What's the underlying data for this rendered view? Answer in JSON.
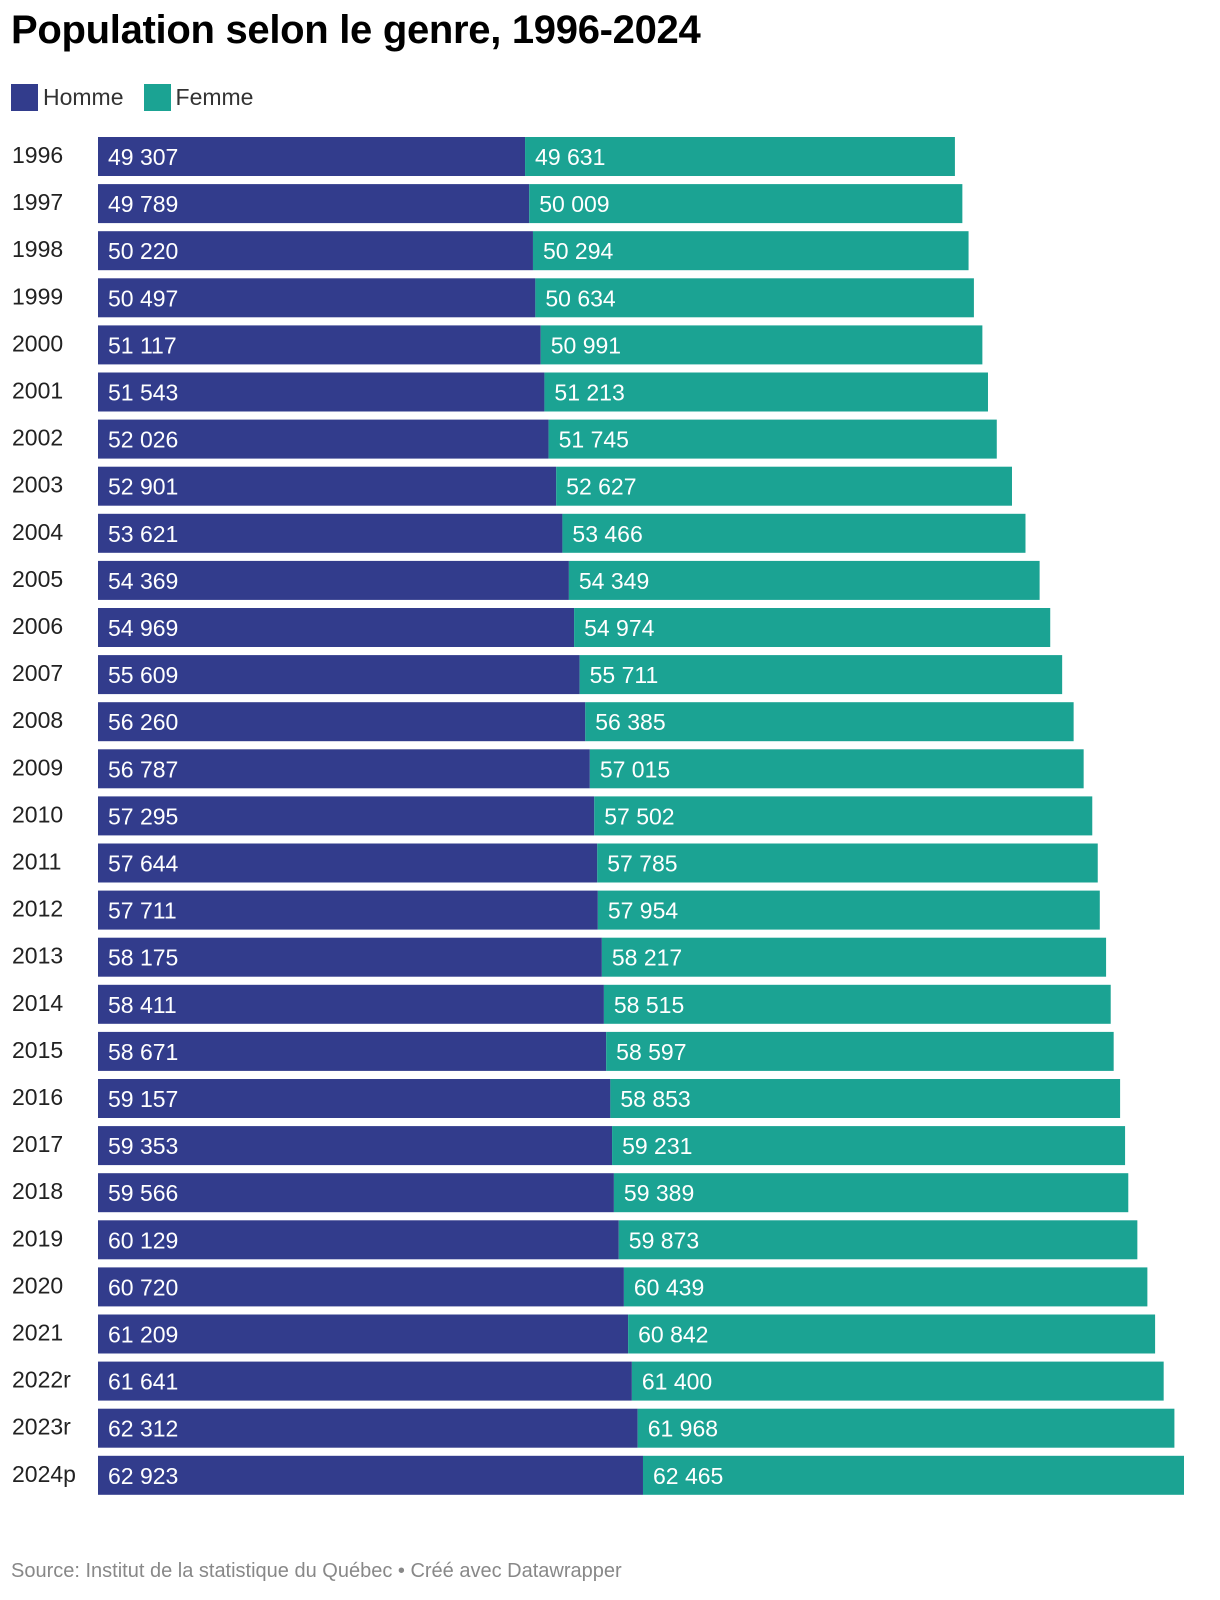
{
  "colors": {
    "homme": "#323c8c",
    "femme": "#1ba393"
  },
  "chart_data": {
    "type": "bar",
    "orientation": "horizontal",
    "stacked": true,
    "title": "Population selon le genre, 1996-2024",
    "legend_position": "top-left",
    "grid": false,
    "xlim": [
      0,
      125388
    ],
    "categories": [
      "1996",
      "1997",
      "1998",
      "1999",
      "2000",
      "2001",
      "2002",
      "2003",
      "2004",
      "2005",
      "2006",
      "2007",
      "2008",
      "2009",
      "2010",
      "2011",
      "2012",
      "2013",
      "2014",
      "2015",
      "2016",
      "2017",
      "2018",
      "2019",
      "2020",
      "2021",
      "2022r",
      "2023r",
      "2024p"
    ],
    "series": [
      {
        "name": "Homme",
        "color": "#323c8c",
        "values": [
          49307,
          49789,
          50220,
          50497,
          51117,
          51543,
          52026,
          52901,
          53621,
          54369,
          54969,
          55609,
          56260,
          56787,
          57295,
          57644,
          57711,
          58175,
          58411,
          58671,
          59157,
          59353,
          59566,
          60129,
          60720,
          61209,
          61641,
          62312,
          62923
        ],
        "labels": [
          "49 307",
          "49 789",
          "50 220",
          "50 497",
          "51 117",
          "51 543",
          "52 026",
          "52 901",
          "53 621",
          "54 369",
          "54 969",
          "55 609",
          "56 260",
          "56 787",
          "57 295",
          "57 644",
          "57 711",
          "58 175",
          "58 411",
          "58 671",
          "59 157",
          "59 353",
          "59 566",
          "60 129",
          "60 720",
          "61 209",
          "61 641",
          "62 312",
          "62 923"
        ]
      },
      {
        "name": "Femme",
        "color": "#1ba393",
        "values": [
          49631,
          50009,
          50294,
          50634,
          50991,
          51213,
          51745,
          52627,
          53466,
          54349,
          54974,
          55711,
          56385,
          57015,
          57502,
          57785,
          57954,
          58217,
          58515,
          58597,
          58853,
          59231,
          59389,
          59873,
          60439,
          60842,
          61400,
          61968,
          62465
        ],
        "labels": [
          "49 631",
          "50 009",
          "50 294",
          "50 634",
          "50 991",
          "51 213",
          "51 745",
          "52 627",
          "53 466",
          "54 349",
          "54 974",
          "55 711",
          "56 385",
          "57 015",
          "57 502",
          "57 785",
          "57 954",
          "58 217",
          "58 515",
          "58 597",
          "58 853",
          "59 231",
          "59 389",
          "59 873",
          "60 439",
          "60 842",
          "61 400",
          "61 968",
          "62 465"
        ]
      }
    ]
  },
  "footer": {
    "source": "Source: Institut de la statistique du Québec • Créé avec Datawrapper"
  }
}
